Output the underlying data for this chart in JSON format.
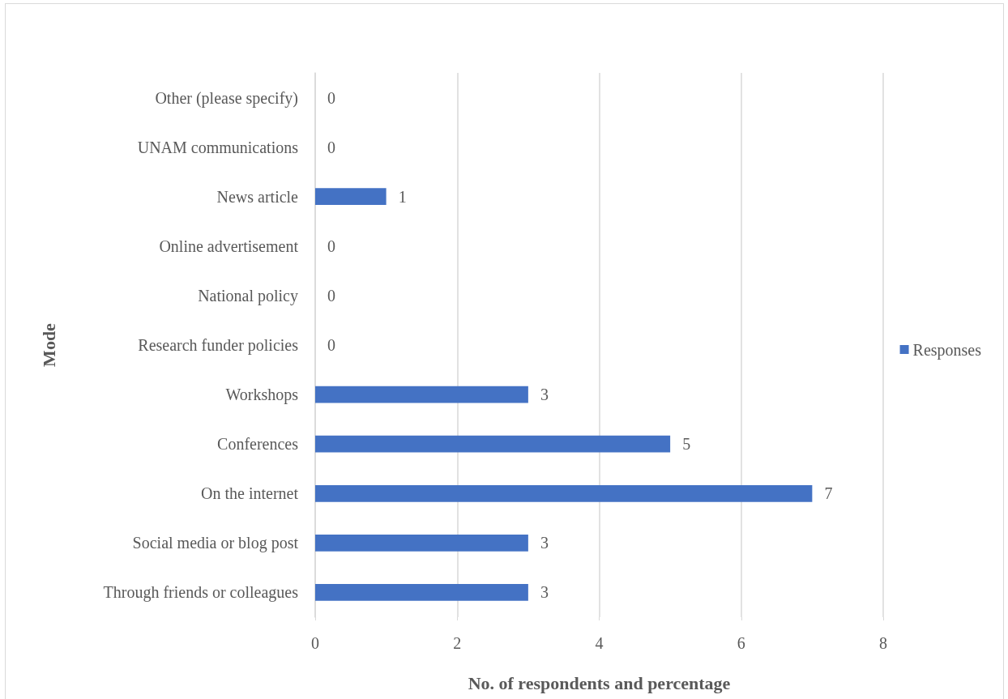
{
  "chart_data": {
    "type": "bar",
    "orientation": "horizontal",
    "xlabel": "No. of respondents and percentage",
    "ylabel": "Mode",
    "categories": [
      "Other (please specify)",
      "UNAM communications",
      "News article",
      "Online advertisement",
      "National policy",
      "Research funder policies",
      "Workshops",
      "Conferences",
      "On the internet",
      "Social media or blog post",
      "Through friends or colleagues"
    ],
    "series": [
      {
        "name": "Responses",
        "color": "#4472c4",
        "values": [
          0,
          0,
          1,
          0,
          0,
          0,
          3,
          5,
          7,
          3,
          3
        ]
      }
    ],
    "xlim": [
      0,
      8
    ],
    "xticks": [
      0,
      2,
      4,
      6,
      8
    ],
    "grid": "x",
    "legend": "right",
    "data_labels": true
  }
}
